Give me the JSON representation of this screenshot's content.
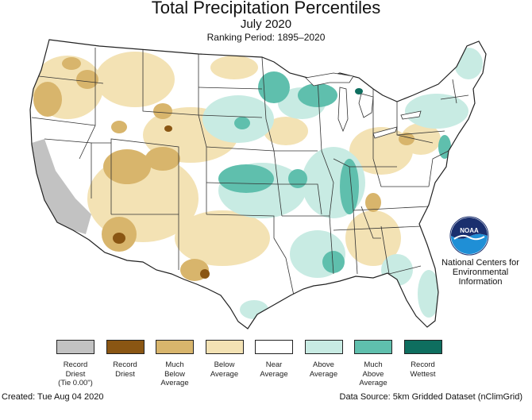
{
  "header": {
    "title": "Total Precipitation Percentiles",
    "subtitle": "July 2020",
    "ranking_period": "Ranking Period: 1895–2020"
  },
  "logo": {
    "org_line1": "National Centers for",
    "org_line2": "Environmental",
    "org_line3": "Information",
    "emblem_text": "NOAA"
  },
  "legend": {
    "items": [
      {
        "label_lines": [
          "Record",
          "Driest",
          "(Tie 0.00\")"
        ],
        "color": "#c2c2c2"
      },
      {
        "label_lines": [
          "Record",
          "Driest"
        ],
        "color": "#8a5613"
      },
      {
        "label_lines": [
          "Much",
          "Below",
          "Average"
        ],
        "color": "#d8b56c"
      },
      {
        "label_lines": [
          "Below",
          "Average"
        ],
        "color": "#f3e2b4"
      },
      {
        "label_lines": [
          "Near",
          "Average"
        ],
        "color": "#ffffff"
      },
      {
        "label_lines": [
          "Above",
          "Average"
        ],
        "color": "#c8ebe3"
      },
      {
        "label_lines": [
          "Much",
          "Above",
          "Average"
        ],
        "color": "#5fbfad"
      },
      {
        "label_lines": [
          "Record",
          "Wettest"
        ],
        "color": "#0e6e5f"
      }
    ]
  },
  "footer": {
    "created": "Created: Tue Aug 04 2020",
    "source": "Data Source: 5km Gridded Dataset (nClimGrid)"
  },
  "colors": {
    "record_driest_tie": "#c2c2c2",
    "record_driest": "#8a5613",
    "much_below": "#d8b56c",
    "below": "#f3e2b4",
    "near": "#ffffff",
    "above": "#c8ebe3",
    "much_above": "#5fbfad",
    "record_wettest": "#0e6e5f"
  }
}
